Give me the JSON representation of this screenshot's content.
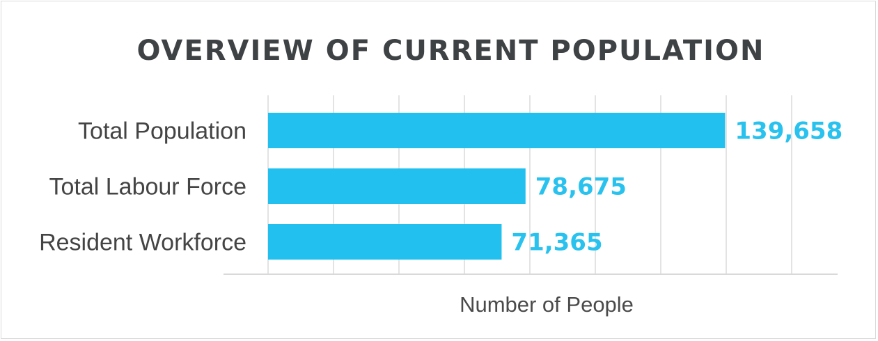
{
  "chart_data": {
    "type": "bar",
    "orientation": "horizontal",
    "title": "OVERVIEW OF CURRENT POPULATION",
    "xlabel": "Number of People",
    "ylabel": "",
    "categories": [
      "Total Population",
      "Total Labour Force",
      "Resident Workforce"
    ],
    "values": [
      139658,
      78675,
      71365
    ],
    "value_labels": [
      "139,658",
      "78,675",
      "71,365"
    ],
    "xlim": [
      0,
      160000
    ],
    "grid": true,
    "bar_color": "#22c0ef",
    "label_color": "#29c2ee"
  }
}
